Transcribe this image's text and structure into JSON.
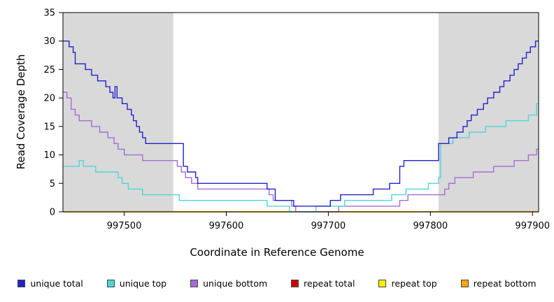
{
  "chart_data": {
    "type": "line",
    "subtype": "step",
    "title": "",
    "xlabel": "Coordinate in Reference Genome",
    "ylabel": "Read Coverage Depth",
    "xlim": [
      997440,
      997906
    ],
    "ylim": [
      0,
      35
    ],
    "x_ticks": [
      997500,
      997600,
      997700,
      997800,
      997900
    ],
    "y_ticks": [
      0,
      5,
      10,
      15,
      20,
      25,
      30,
      35
    ],
    "grid": false,
    "shade_color": "#d9d9d9",
    "shaded_regions": [
      [
        997440,
        997548
      ],
      [
        997808,
        997906
      ]
    ],
    "legend_position": "bottom",
    "series": [
      {
        "name": "repeat total",
        "color": "#cc0000",
        "points": [
          [
            997440,
            0
          ],
          [
            997906,
            0
          ]
        ]
      },
      {
        "name": "repeat top",
        "color": "#ffee00",
        "points": [
          [
            997440,
            0
          ],
          [
            997906,
            0
          ]
        ]
      },
      {
        "name": "repeat bottom",
        "color": "#ffa500",
        "points": [
          [
            997440,
            0
          ],
          [
            997906,
            0
          ]
        ]
      },
      {
        "name": "unique bottom",
        "color": "#a66bd8",
        "points": [
          [
            997440,
            21
          ],
          [
            997444,
            20
          ],
          [
            997448,
            18
          ],
          [
            997452,
            17
          ],
          [
            997456,
            16
          ],
          [
            997468,
            15
          ],
          [
            997476,
            14
          ],
          [
            997484,
            13
          ],
          [
            997490,
            12
          ],
          [
            997494,
            11
          ],
          [
            997500,
            10
          ],
          [
            997512,
            10
          ],
          [
            997518,
            9
          ],
          [
            997548,
            9
          ],
          [
            997552,
            8
          ],
          [
            997556,
            7
          ],
          [
            997560,
            6
          ],
          [
            997566,
            5
          ],
          [
            997572,
            4
          ],
          [
            997636,
            4
          ],
          [
            997642,
            3
          ],
          [
            997646,
            2
          ],
          [
            997660,
            2
          ],
          [
            997664,
            1
          ],
          [
            997668,
            0
          ],
          [
            997706,
            0
          ],
          [
            997710,
            1
          ],
          [
            997766,
            1
          ],
          [
            997770,
            2
          ],
          [
            997778,
            3
          ],
          [
            997808,
            3
          ],
          [
            997814,
            4
          ],
          [
            997818,
            5
          ],
          [
            997824,
            6
          ],
          [
            997836,
            6
          ],
          [
            997842,
            7
          ],
          [
            997856,
            7
          ],
          [
            997862,
            8
          ],
          [
            997876,
            8
          ],
          [
            997882,
            9
          ],
          [
            997892,
            9
          ],
          [
            997896,
            10
          ],
          [
            997902,
            10
          ],
          [
            997904,
            11
          ],
          [
            997906,
            11
          ]
        ]
      },
      {
        "name": "unique top",
        "color": "#4fd6d6",
        "points": [
          [
            997440,
            8
          ],
          [
            997452,
            8
          ],
          [
            997456,
            9
          ],
          [
            997460,
            8
          ],
          [
            997472,
            7
          ],
          [
            997490,
            7
          ],
          [
            997494,
            6
          ],
          [
            997498,
            5
          ],
          [
            997504,
            4
          ],
          [
            997512,
            4
          ],
          [
            997518,
            3
          ],
          [
            997548,
            3
          ],
          [
            997554,
            2
          ],
          [
            997634,
            2
          ],
          [
            997640,
            1
          ],
          [
            997658,
            1
          ],
          [
            997662,
            0
          ],
          [
            997684,
            0
          ],
          [
            997688,
            1
          ],
          [
            997712,
            1
          ],
          [
            997716,
            2
          ],
          [
            997756,
            2
          ],
          [
            997762,
            3
          ],
          [
            997776,
            4
          ],
          [
            997794,
            4
          ],
          [
            997798,
            5
          ],
          [
            997806,
            5
          ],
          [
            997808,
            6
          ],
          [
            997810,
            12
          ],
          [
            997818,
            12
          ],
          [
            997822,
            13
          ],
          [
            997834,
            13
          ],
          [
            997838,
            14
          ],
          [
            997850,
            14
          ],
          [
            997854,
            15
          ],
          [
            997870,
            15
          ],
          [
            997874,
            16
          ],
          [
            997890,
            16
          ],
          [
            997896,
            17
          ],
          [
            997902,
            17
          ],
          [
            997904,
            19
          ],
          [
            997906,
            19
          ]
        ]
      },
      {
        "name": "unique total",
        "color": "#2222cc",
        "points": [
          [
            997440,
            30
          ],
          [
            997446,
            29
          ],
          [
            997450,
            28
          ],
          [
            997452,
            26
          ],
          [
            997460,
            26
          ],
          [
            997462,
            25
          ],
          [
            997468,
            24
          ],
          [
            997474,
            23
          ],
          [
            997482,
            22
          ],
          [
            997486,
            21
          ],
          [
            997489,
            20
          ],
          [
            997491,
            22
          ],
          [
            997493,
            20
          ],
          [
            997498,
            19
          ],
          [
            997503,
            18
          ],
          [
            997507,
            17
          ],
          [
            997509,
            16
          ],
          [
            997512,
            15
          ],
          [
            997515,
            14
          ],
          [
            997518,
            13
          ],
          [
            997521,
            12
          ],
          [
            997556,
            12
          ],
          [
            997558,
            8
          ],
          [
            997562,
            7
          ],
          [
            997568,
            7
          ],
          [
            997570,
            6
          ],
          [
            997572,
            5
          ],
          [
            997636,
            5
          ],
          [
            997640,
            4
          ],
          [
            997648,
            2
          ],
          [
            997664,
            2
          ],
          [
            997666,
            1
          ],
          [
            997698,
            1
          ],
          [
            997702,
            2
          ],
          [
            997708,
            2
          ],
          [
            997712,
            3
          ],
          [
            997740,
            3
          ],
          [
            997744,
            4
          ],
          [
            997756,
            4
          ],
          [
            997760,
            5
          ],
          [
            997768,
            5
          ],
          [
            997770,
            8
          ],
          [
            997774,
            9
          ],
          [
            997806,
            9
          ],
          [
            997808,
            12
          ],
          [
            997814,
            12
          ],
          [
            997818,
            13
          ],
          [
            997826,
            14
          ],
          [
            997832,
            15
          ],
          [
            997836,
            16
          ],
          [
            997840,
            17
          ],
          [
            997846,
            18
          ],
          [
            997852,
            19
          ],
          [
            997856,
            20
          ],
          [
            997862,
            21
          ],
          [
            997868,
            22
          ],
          [
            997872,
            23
          ],
          [
            997878,
            24
          ],
          [
            997882,
            25
          ],
          [
            997886,
            26
          ],
          [
            997890,
            27
          ],
          [
            997894,
            28
          ],
          [
            997898,
            29
          ],
          [
            997903,
            30
          ],
          [
            997906,
            30
          ]
        ]
      }
    ]
  },
  "legend": {
    "items": [
      {
        "label": "unique total",
        "color": "#2222cc"
      },
      {
        "label": "unique top",
        "color": "#4fd6d6"
      },
      {
        "label": "unique bottom",
        "color": "#a66bd8"
      },
      {
        "label": "repeat total",
        "color": "#cc0000"
      },
      {
        "label": "repeat top",
        "color": "#ffee00"
      },
      {
        "label": "repeat bottom",
        "color": "#ffa500"
      }
    ]
  }
}
